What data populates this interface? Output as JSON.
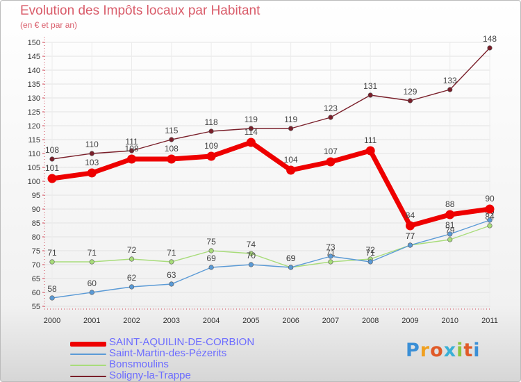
{
  "chart_data": {
    "type": "line",
    "title": "Evolution des Impôts locaux par Habitant",
    "subtitle": "(en € et par an)",
    "x": [
      "2000",
      "2001",
      "2002",
      "2003",
      "2004",
      "2005",
      "2006",
      "2007",
      "2008",
      "2009",
      "2010",
      "2011"
    ],
    "ylim": [
      55,
      150
    ],
    "yticks": [
      55,
      60,
      65,
      70,
      75,
      80,
      85,
      90,
      95,
      100,
      105,
      110,
      115,
      120,
      125,
      130,
      135,
      140,
      145,
      150
    ],
    "series": [
      {
        "name": "Soligny-la-Trappe",
        "color": "#7a1f2a",
        "values": [
          108,
          110,
          111,
          115,
          118,
          119,
          119,
          123,
          131,
          129,
          133,
          148
        ]
      },
      {
        "name": "Bonsmoulins",
        "color": "#a8dc7a",
        "values": [
          71,
          71,
          72,
          71,
          75,
          74,
          69,
          71,
          72,
          77,
          79,
          84
        ]
      },
      {
        "name": "Saint-Martin-des-Pézerits",
        "color": "#5a9ad6",
        "values": [
          58,
          60,
          62,
          63,
          69,
          70,
          69,
          73,
          71,
          77,
          81,
          86
        ]
      },
      {
        "name": "SAINT-AQUILIN-DE-CORBION",
        "color": "#ee0000",
        "values": [
          101,
          103,
          108,
          108,
          109,
          114,
          104,
          107,
          111,
          84,
          88,
          90
        ]
      }
    ],
    "legend": [
      {
        "name": "SAINT-AQUILIN-DE-CORBION",
        "color": "#ee0000"
      },
      {
        "name": "Saint-Martin-des-Pézerits",
        "color": "#5a9ad6"
      },
      {
        "name": "Bonsmoulins",
        "color": "#a8dc7a"
      },
      {
        "name": "Soligny-la-Trappe",
        "color": "#7a1f2a"
      }
    ]
  },
  "brand": {
    "logo_text": "Proxiti"
  }
}
